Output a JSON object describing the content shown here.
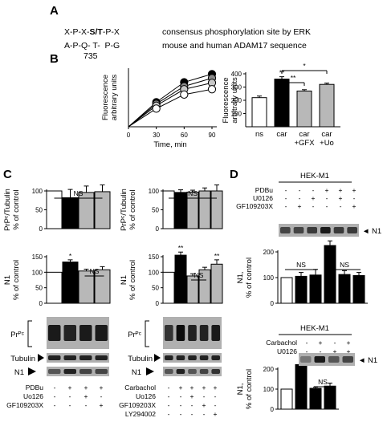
{
  "panel_labels": {
    "a": "A",
    "b": "B",
    "c": "C",
    "d": "D"
  },
  "panel_a": {
    "seq1": {
      "pre": "X-P-X-",
      "bold": "S/T",
      "post": "-P-X"
    },
    "seq2": "A-P-Q- T-  P-G",
    "residue": "735",
    "desc1": "consensus phosphorylation site by ERK",
    "desc2": "mouse and human ADAM17 sequence"
  },
  "chart_data": [
    {
      "id": "B-left",
      "type": "line",
      "xlabel": "Time, min",
      "ylabel": [
        "Fluorescence",
        "arbitrary  units"
      ],
      "x": [
        0,
        30,
        60,
        90
      ],
      "xticks": [
        "0",
        "30",
        "60",
        "90"
      ],
      "xlim": [
        0,
        90
      ],
      "ylim": [
        0,
        500
      ],
      "series": [
        {
          "fill": "#000000",
          "values": [
            0,
            210,
            380,
            450
          ]
        },
        {
          "fill": "#8a8a8a",
          "values": [
            0,
            195,
            345,
            415
          ]
        },
        {
          "fill": "#c8c8c8",
          "values": [
            0,
            180,
            320,
            375
          ]
        },
        {
          "fill": "#ffffff",
          "values": [
            0,
            155,
            275,
            320
          ]
        }
      ]
    },
    {
      "id": "B-right",
      "type": "bar",
      "ylabel": [
        "Fluorescence",
        "arbitrary  units"
      ],
      "ylim": [
        0,
        400
      ],
      "yticks": [
        "100",
        "200",
        "300",
        "400"
      ],
      "categories": [
        "ns",
        "car",
        "car +GFX",
        "car +Uo"
      ],
      "category_labels": [
        [
          "ns"
        ],
        [
          "car"
        ],
        [
          "car",
          "+GFX"
        ],
        [
          "car",
          "+Uo"
        ]
      ],
      "values": [
        220,
        360,
        270,
        320
      ],
      "errors": [
        12,
        18,
        10,
        10
      ],
      "fills": [
        "#ffffff",
        "#000000",
        "#b8b8b8",
        "#b8b8b8"
      ],
      "bar_sig": [
        "",
        "**",
        "",
        ""
      ],
      "brackets": [
        {
          "from": 1,
          "to": 2,
          "label": "**"
        },
        {
          "from": 1,
          "to": 3,
          "label": "*"
        }
      ]
    },
    {
      "id": "C-PrPc-PDBu",
      "type": "bar",
      "ylabel": [
        "PrPᶜ/Tubulin",
        "% of control"
      ],
      "ylim": [
        0,
        100
      ],
      "yticks": [
        "0",
        "50",
        "100"
      ],
      "values": [
        100,
        82,
        96,
        98
      ],
      "errors": [
        0,
        22,
        17,
        18
      ],
      "fills": [
        "#ffffff",
        "#000000",
        "#b8b8b8",
        "#b8b8b8"
      ],
      "brackets": [
        {
          "from": 0,
          "to": 3,
          "label": "NS"
        }
      ]
    },
    {
      "id": "C-PrPc-Carbachol",
      "type": "bar",
      "ylabel": [
        "PrPᶜ/Tubulin",
        "% of control"
      ],
      "ylim": [
        0,
        100
      ],
      "yticks": [
        "0",
        "50",
        "100"
      ],
      "values": [
        100,
        96,
        97,
        100,
        100
      ],
      "errors": [
        0,
        7,
        5,
        8,
        16
      ],
      "fills": [
        "#ffffff",
        "#000000",
        "#b8b8b8",
        "#b8b8b8",
        "#b8b8b8"
      ],
      "brackets": [
        {
          "from": 0,
          "to": 4,
          "label": "NS"
        }
      ]
    },
    {
      "id": "C-N1-PDBu",
      "type": "bar",
      "ylabel": [
        "N1",
        "% of control"
      ],
      "ylim": [
        0,
        150
      ],
      "yticks": [
        "0",
        "50",
        "100",
        "150"
      ],
      "values": [
        100,
        133,
        104,
        108
      ],
      "errors": [
        0,
        7,
        6,
        10
      ],
      "fills": [
        "#ffffff",
        "#000000",
        "#b8b8b8",
        "#b8b8b8"
      ],
      "bar_sig": [
        "",
        "*",
        "",
        ""
      ],
      "brackets": [
        {
          "from": 2,
          "to": 3,
          "label": "NS"
        }
      ]
    },
    {
      "id": "C-N1-Carbachol",
      "type": "bar",
      "ylabel": [
        "N1",
        "% of control"
      ],
      "ylim": [
        0,
        150
      ],
      "yticks": [
        "0",
        "50",
        "100",
        "150"
      ],
      "values": [
        100,
        155,
        88,
        108,
        126
      ],
      "errors": [
        0,
        10,
        7,
        8,
        14
      ],
      "fills": [
        "#ffffff",
        "#000000",
        "#b8b8b8",
        "#b8b8b8",
        "#b8b8b8"
      ],
      "bar_sig": [
        "",
        "**",
        "",
        "",
        "**"
      ],
      "brackets": [
        {
          "from": 2,
          "to": 3,
          "label": "NS"
        }
      ]
    },
    {
      "id": "D-PDBu",
      "type": "bar",
      "ylabel": [
        "N1,",
        "% of control"
      ],
      "ylim": [
        0,
        200
      ],
      "yticks": [
        "0",
        "100",
        "200"
      ],
      "values": [
        100,
        105,
        110,
        225,
        112,
        108
      ],
      "errors": [
        0,
        15,
        22,
        18,
        15,
        12
      ],
      "fills": [
        "#ffffff",
        "#000000",
        "#000000",
        "#000000",
        "#000000",
        "#000000"
      ],
      "bar_sig": [
        "",
        "",
        "",
        "*",
        "",
        ""
      ],
      "brackets": [
        {
          "from": 0,
          "to": 2,
          "label": "NS"
        },
        {
          "from": 3,
          "to": 5,
          "label": "NS"
        }
      ]
    },
    {
      "id": "D-Carbachol",
      "type": "bar",
      "ylabel": [
        "N1,",
        "% of control"
      ],
      "ylim": [
        0,
        200
      ],
      "yticks": [
        "0",
        "100",
        "200"
      ],
      "values": [
        100,
        222,
        104,
        115
      ],
      "errors": [
        0,
        18,
        6,
        15
      ],
      "fills": [
        "#ffffff",
        "#000000",
        "#000000",
        "#000000"
      ],
      "bar_sig": [
        "",
        "*",
        "",
        ""
      ],
      "brackets": [
        {
          "from": 2,
          "to": 3,
          "label": "NS"
        }
      ]
    }
  ],
  "blots": {
    "c_left": {
      "labels": {
        "prpc": "Prᴾᶜ",
        "tubulin": "Tubulin",
        "n1": "N1"
      },
      "rows": [
        {
          "name": "PDBu",
          "vals": [
            "-",
            "+",
            "+",
            "+"
          ]
        },
        {
          "name": "Uo126",
          "vals": [
            "-",
            "-",
            "+",
            "-"
          ]
        },
        {
          "name": "GF109203X",
          "vals": [
            "-",
            "-",
            "-",
            "+"
          ]
        }
      ]
    },
    "c_right": {
      "labels": {
        "prpc": "Prᴾᶜ",
        "tubulin": "Tubulin",
        "n1": "N1"
      },
      "rows": [
        {
          "name": "Carbachol",
          "vals": [
            "-",
            "+",
            "+",
            "+",
            "+"
          ]
        },
        {
          "name": "Uo126",
          "vals": [
            "-",
            "-",
            "+",
            "-",
            "-"
          ]
        },
        {
          "name": "GF109203X",
          "vals": [
            "-",
            "-",
            "-",
            "+",
            "-"
          ]
        },
        {
          "name": "LY294002",
          "vals": [
            "-",
            "-",
            "-",
            "-",
            "+"
          ]
        }
      ]
    },
    "d_top": {
      "title": "HEK-M1",
      "band": "◄ N1",
      "rows": [
        {
          "name": "PDBu",
          "vals": [
            "-",
            "-",
            "-",
            "+",
            "+",
            "+"
          ]
        },
        {
          "name": "U0126",
          "vals": [
            "-",
            "-",
            "+",
            "-",
            "+",
            "-"
          ]
        },
        {
          "name": "GF109203X",
          "vals": [
            "-",
            "+",
            "-",
            "-",
            "-",
            "+"
          ]
        }
      ]
    },
    "d_bottom": {
      "title": "HEK-M1",
      "band": "◄ N1",
      "rows": [
        {
          "name": "Carbachol",
          "vals": [
            "-",
            "+",
            "-",
            "+"
          ]
        },
        {
          "name": "U0126",
          "vals": [
            "-",
            "-",
            "+",
            "+"
          ]
        }
      ]
    }
  }
}
